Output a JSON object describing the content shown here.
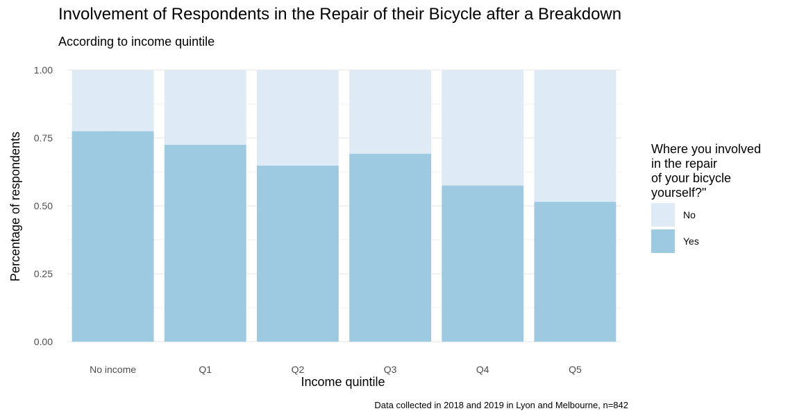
{
  "chart_data": {
    "type": "bar",
    "stacked": true,
    "title": "Involvement of Respondents in the Repair of their Bicycle after a Breakdown",
    "subtitle": "According to income quintile",
    "xlabel": "Income quintile",
    "ylabel": "Percentage of respondents",
    "caption": "Data collected in 2018 and 2019 in Lyon and Melbourne, n=842",
    "categories": [
      "No income",
      "Q1",
      "Q2",
      "Q3",
      "Q4",
      "Q5"
    ],
    "series": [
      {
        "name": "Yes",
        "color": "#9ecae1",
        "values": [
          0.775,
          0.725,
          0.648,
          0.692,
          0.575,
          0.515
        ]
      },
      {
        "name": "No",
        "color": "#deebf7",
        "values": [
          0.225,
          0.275,
          0.352,
          0.308,
          0.425,
          0.485
        ]
      }
    ],
    "ylim": [
      0,
      1
    ],
    "yticks": [
      "0.00",
      "0.25",
      "0.50",
      "0.75",
      "1.00"
    ],
    "grid": true,
    "legend": {
      "title": "Where you involved\nin the repair\nof your bicycle\nyourself?\"",
      "position": "right",
      "entries": [
        {
          "label": "No",
          "color": "#deebf7"
        },
        {
          "label": "Yes",
          "color": "#9ecae1"
        }
      ]
    }
  }
}
